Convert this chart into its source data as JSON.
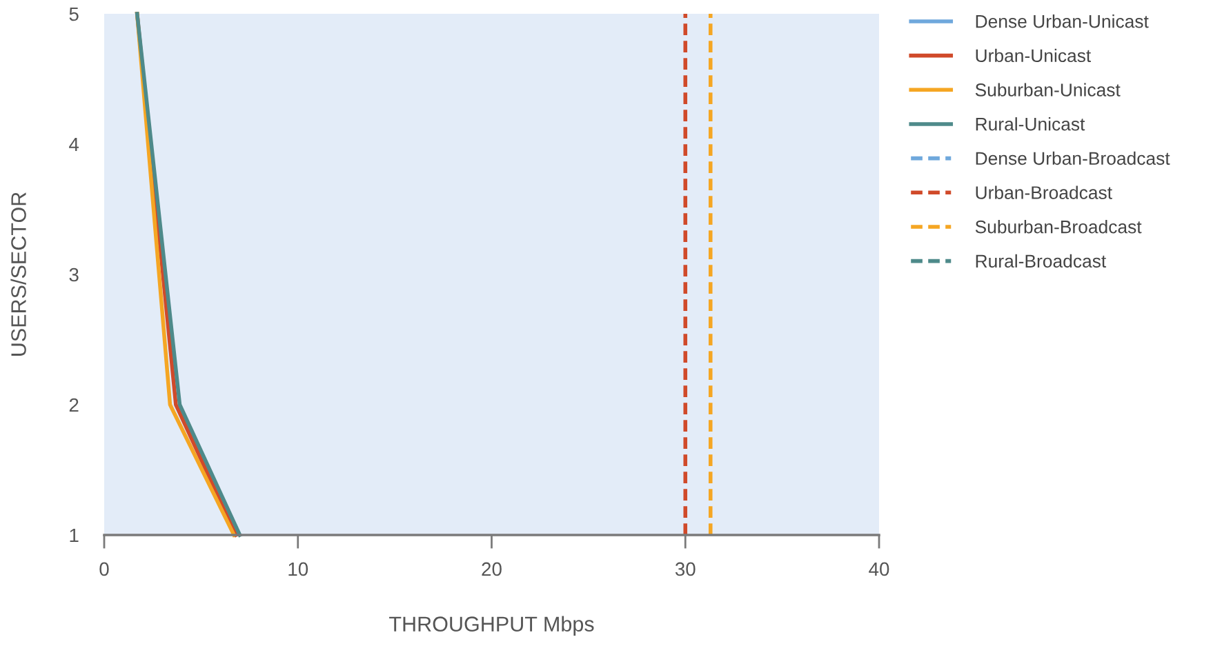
{
  "chart_data": {
    "type": "line",
    "xlabel": "THROUGHPUT Mbps",
    "ylabel": "USERS/SECTOR",
    "xlim": [
      0,
      40
    ],
    "xticks": [
      0,
      10,
      20,
      30,
      40
    ],
    "ylim": [
      1,
      5
    ],
    "yticks": [
      1,
      2,
      3,
      4,
      5
    ],
    "grid": false,
    "legend": "top right",
    "marker": "none",
    "series": [
      {
        "name": "Dense Urban-Unicast",
        "color": "#6fa8dc",
        "line_style": "solid",
        "x": [
          null
        ],
        "values": [
          null
        ]
      },
      {
        "name": "Urban-Unicast",
        "color": "#d04a2a",
        "line_style": "solid",
        "x": [
          1.7,
          3.7,
          6.8
        ],
        "values": [
          5,
          2,
          1
        ]
      },
      {
        "name": "Suburban-Unicast",
        "color": "#f5a623",
        "line_style": "solid",
        "x": [
          1.7,
          3.4,
          6.7
        ],
        "values": [
          5,
          2,
          1
        ]
      },
      {
        "name": "Rural-Unicast",
        "color": "#4e8a8a",
        "line_style": "solid",
        "x": [
          1.7,
          3.9,
          7.0
        ],
        "values": [
          5,
          2,
          1
        ]
      },
      {
        "name": "Dense Urban-Broadcast",
        "color": "#6fa8dc",
        "line_style": "dashed",
        "x": [
          null
        ],
        "values": [
          null
        ]
      },
      {
        "name": "Urban-Broadcast",
        "color": "#d04a2a",
        "line_style": "dashed",
        "x": [
          30.0,
          30.0
        ],
        "values": [
          1,
          5
        ]
      },
      {
        "name": "Suburban-Broadcast",
        "color": "#f5a623",
        "line_style": "dashed",
        "x": [
          31.3,
          31.3
        ],
        "values": [
          1,
          5
        ]
      },
      {
        "name": "Rural-Broadcast",
        "color": "#4e8a8a",
        "line_style": "dashed",
        "x": [
          null
        ],
        "values": [
          null
        ]
      }
    ]
  }
}
